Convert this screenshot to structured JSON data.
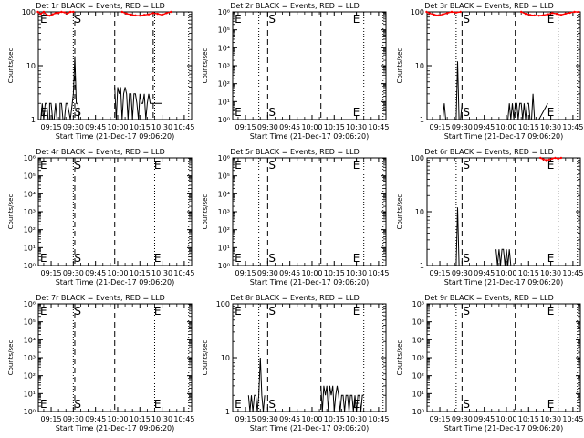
{
  "figure": {
    "xlabel": "Start Time (21-Dec-17 09:06:20)",
    "ylabel": "Counts/sec",
    "x_tick_labels": [
      "09:15",
      "09:30",
      "09:45",
      "10:00",
      "10:15",
      "10:30",
      "10:45"
    ],
    "colors": {
      "events": "#000000",
      "lld": "#ff0000",
      "axes": "#000000",
      "background": "#ffffff"
    }
  },
  "chart_data": [
    {
      "type": "line",
      "title": "Det 1r  BLACK = Events, RED = LLD",
      "xlabel": "Start Time (21-Dec-17 09:06:20)",
      "ylabel": "Counts/sec",
      "yscale": "log",
      "ylim": [
        1,
        100
      ],
      "xlim": [
        "09:06:20",
        "10:50:00"
      ],
      "y_tick_labels": [
        "1",
        "10",
        "100"
      ],
      "markers": [
        {
          "label": "E",
          "time": "09:06"
        },
        {
          "label": "S",
          "time": "09:30"
        }
      ],
      "vlines": {
        "dotted": [
          "09:30",
          "10:25",
          "10:48"
        ],
        "dashed": [
          "09:31",
          "09:58",
          "10:24"
        ]
      },
      "series": [
        {
          "color": "#000000",
          "x": [
            "09:07",
            "09:08",
            "09:09",
            "09:10",
            "09:10",
            "09:11",
            "09:12",
            "09:13",
            "09:14",
            "09:14",
            "09:15",
            "09:16",
            "09:17",
            "09:18",
            "09:18",
            "09:19",
            "09:20",
            "09:21",
            "09:21",
            "09:22",
            "09:23",
            "09:24",
            "09:25",
            "09:26",
            "09:28",
            "09:30",
            "09:31",
            "09:32",
            "09:33",
            "09:34"
          ],
          "values": [
            1,
            1,
            2,
            1,
            1,
            2,
            2,
            1,
            1,
            2,
            2,
            1,
            1,
            2,
            2,
            1,
            1,
            1,
            2,
            2,
            1,
            1,
            2,
            2,
            1,
            3,
            15,
            2,
            2,
            1
          ]
        },
        {
          "color": "#000000",
          "x": [
            "09:58",
            "09:59",
            "10:00",
            "10:01",
            "10:02",
            "10:03",
            "10:04",
            "10:05",
            "10:06",
            "10:07",
            "10:08",
            "10:09",
            "10:10",
            "10:11",
            "10:12",
            "10:13",
            "10:14",
            "10:15",
            "10:16",
            "10:17",
            "10:18",
            "10:19",
            "10:20",
            "10:21",
            "10:22",
            "10:23",
            "10:24",
            "10:25",
            "10:26",
            "10:27",
            "10:28",
            "10:29",
            "10:30"
          ],
          "values": [
            4,
            1,
            4,
            3,
            4,
            1,
            3,
            4,
            3,
            1,
            3,
            3,
            1,
            3,
            3,
            2,
            1,
            3,
            2,
            2,
            3,
            1,
            2,
            3,
            2,
            2,
            2,
            2,
            2,
            2,
            2,
            2,
            2
          ]
        },
        {
          "color": "#ff0000",
          "x": [
            "09:06",
            "09:08",
            "09:10",
            "09:12",
            "09:14",
            "09:16",
            "09:18",
            "09:20",
            "09:22",
            "09:24",
            "09:26",
            "09:28",
            "09:30"
          ],
          "values": [
            100,
            92,
            100,
            88,
            85,
            90,
            95,
            96,
            100,
            98,
            93,
            100,
            100
          ]
        },
        {
          "color": "#ff0000",
          "x": [
            "10:03",
            "10:06",
            "10:09",
            "10:12",
            "10:15",
            "10:18",
            "10:21",
            "10:24",
            "10:27",
            "10:30",
            "10:33",
            "10:36"
          ],
          "values": [
            100,
            93,
            89,
            86,
            85,
            88,
            90,
            95,
            92,
            88,
            95,
            100
          ]
        }
      ]
    },
    {
      "type": "line",
      "title": "Det 2r  BLACK = Events, RED = LLD",
      "xlabel": "Start Time (21-Dec-17 09:06:20)",
      "ylabel": "Counts/sec",
      "yscale": "log",
      "ylim": [
        1,
        1000000
      ],
      "xlim": [
        "09:06:20",
        "10:50:00"
      ],
      "y_tick_labels": [
        "10⁰",
        "10¹",
        "10²",
        "10³",
        "10⁴",
        "10⁵",
        "10⁶"
      ],
      "markers": [
        {
          "label": "E",
          "time": "09:07"
        },
        {
          "label": "S",
          "time": "09:30"
        },
        {
          "label": "E",
          "time": "10:27"
        }
      ],
      "vlines": {
        "dotted": [
          "09:24",
          "10:35",
          "10:48"
        ],
        "dashed": [
          "09:30",
          "10:06"
        ]
      },
      "series": []
    },
    {
      "type": "line",
      "title": "Det 3r  BLACK = Events, RED = LLD",
      "xlabel": "Start Time (21-Dec-17 09:06:20)",
      "ylabel": "Counts/sec",
      "yscale": "log",
      "ylim": [
        1,
        100
      ],
      "xlim": [
        "09:06:20",
        "10:50:00"
      ],
      "y_tick_labels": [
        "1",
        "10",
        "100"
      ],
      "markers": [
        {
          "label": "S",
          "time": "09:30"
        },
        {
          "label": "E",
          "time": "10:27"
        }
      ],
      "vlines": {
        "dotted": [
          "09:26",
          "10:35",
          "10:48"
        ],
        "dashed": [
          "09:30",
          "10:06"
        ]
      },
      "series": [
        {
          "color": "#000000",
          "x": [
            "09:17",
            "09:18",
            "09:19",
            "09:26",
            "09:27",
            "09:28",
            "09:29",
            "09:30"
          ],
          "values": [
            1,
            2,
            1,
            1,
            12,
            1,
            1,
            2
          ]
        },
        {
          "color": "#000000",
          "x": [
            "10:01",
            "10:02",
            "10:03",
            "10:04",
            "10:05",
            "10:06",
            "10:07",
            "10:08",
            "10:09",
            "10:10",
            "10:11",
            "10:12",
            "10:13",
            "10:14",
            "10:15",
            "10:16",
            "10:17",
            "10:18",
            "10:19",
            "10:20",
            "10:22",
            "10:28"
          ],
          "values": [
            1,
            2,
            1,
            2,
            1,
            2,
            2,
            1,
            2,
            2,
            1,
            2,
            1,
            2,
            2,
            1,
            1,
            3,
            1,
            1,
            1,
            2
          ]
        },
        {
          "color": "#ff0000",
          "x": [
            "09:06",
            "09:08",
            "09:11",
            "09:14",
            "09:17",
            "09:20",
            "09:23",
            "09:26",
            "09:29"
          ],
          "values": [
            100,
            94,
            89,
            86,
            90,
            95,
            100,
            97,
            100
          ]
        },
        {
          "color": "#ff0000",
          "x": [
            "10:10",
            "10:13",
            "10:16",
            "10:19",
            "10:22",
            "10:25",
            "10:28",
            "10:31",
            "10:34",
            "10:37",
            "10:40",
            "10:43",
            "10:46",
            "10:49"
          ],
          "values": [
            100,
            92,
            88,
            86,
            85,
            87,
            90,
            95,
            92,
            88,
            93,
            96,
            100,
            100
          ]
        }
      ]
    },
    {
      "type": "line",
      "title": "Det 4r  BLACK = Events, RED = LLD",
      "xlabel": "Start Time (21-Dec-17 09:06:20)",
      "ylabel": "Counts/sec",
      "yscale": "log",
      "ylim": [
        1,
        1000000
      ],
      "xlim": [
        "09:06:20",
        "10:50:00"
      ],
      "y_tick_labels": [
        "10⁰",
        "10¹",
        "10²",
        "10³",
        "10⁴",
        "10⁵",
        "10⁶"
      ],
      "markers": [
        {
          "label": "E",
          "time": "09:06"
        },
        {
          "label": "S",
          "time": "09:30"
        },
        {
          "label": "E",
          "time": "10:24"
        }
      ],
      "vlines": {
        "dotted": [
          "09:30",
          "10:25",
          "10:48"
        ],
        "dashed": [
          "09:31",
          "09:58"
        ]
      },
      "series": []
    },
    {
      "type": "line",
      "title": "Det 5r  BLACK = Events, RED = LLD",
      "xlabel": "Start Time (21-Dec-17 09:06:20)",
      "ylabel": "Counts/sec",
      "yscale": "log",
      "ylim": [
        1,
        1000000
      ],
      "xlim": [
        "09:06:20",
        "10:50:00"
      ],
      "y_tick_labels": [
        "10⁰",
        "10¹",
        "10²",
        "10³",
        "10⁴",
        "10⁵",
        "10⁶"
      ],
      "markers": [
        {
          "label": "E",
          "time": "09:07"
        },
        {
          "label": "S",
          "time": "09:30"
        },
        {
          "label": "E",
          "time": "10:27"
        }
      ],
      "vlines": {
        "dotted": [
          "09:24",
          "10:35",
          "10:48"
        ],
        "dashed": [
          "09:30",
          "10:06"
        ]
      },
      "series": []
    },
    {
      "type": "line",
      "title": "Det 6r  BLACK = Events, RED = LLD",
      "xlabel": "Start Time (21-Dec-17 09:06:20)",
      "ylabel": "Counts/sec",
      "yscale": "log",
      "ylim": [
        1,
        100
      ],
      "xlim": [
        "09:06:20",
        "10:50:00"
      ],
      "y_tick_labels": [
        "1",
        "10",
        "100"
      ],
      "markers": [
        {
          "label": "S",
          "time": "09:30"
        },
        {
          "label": "E",
          "time": "10:27"
        }
      ],
      "vlines": {
        "dotted": [
          "09:26",
          "10:35",
          "10:48"
        ],
        "dashed": [
          "09:30",
          "10:06"
        ]
      },
      "series": [
        {
          "color": "#000000",
          "x": [
            "09:26",
            "09:27",
            "09:28",
            "09:29"
          ],
          "values": [
            1,
            12,
            1,
            1
          ]
        },
        {
          "color": "#000000",
          "x": [
            "09:53",
            "09:54",
            "09:55",
            "09:56",
            "09:57",
            "09:58",
            "09:59",
            "10:00",
            "10:01",
            "10:02",
            "10:03"
          ],
          "values": [
            2,
            1,
            2,
            1,
            2,
            2,
            1,
            2,
            1,
            2,
            1
          ]
        },
        {
          "color": "#ff0000",
          "x": [
            "10:23",
            "10:25",
            "10:27",
            "10:29",
            "10:31",
            "10:33",
            "10:35",
            "10:37"
          ],
          "values": [
            100,
            94,
            91,
            93,
            97,
            100,
            96,
            100
          ]
        }
      ]
    },
    {
      "type": "line",
      "title": "Det 7r  BLACK = Events, RED = LLD",
      "xlabel": "Start Time (21-Dec-17 09:06:20)",
      "ylabel": "Counts/sec",
      "yscale": "log",
      "ylim": [
        1,
        1000000
      ],
      "xlim": [
        "09:06:20",
        "10:50:00"
      ],
      "y_tick_labels": [
        "10⁰",
        "10¹",
        "10²",
        "10³",
        "10⁴",
        "10⁵",
        "10⁶"
      ],
      "markers": [
        {
          "label": "E",
          "time": "09:06"
        },
        {
          "label": "S",
          "time": "09:30"
        },
        {
          "label": "E",
          "time": "10:24"
        }
      ],
      "vlines": {
        "dotted": [
          "09:30",
          "10:25",
          "10:48"
        ],
        "dashed": [
          "09:31",
          "09:58"
        ]
      },
      "series": []
    },
    {
      "type": "line",
      "title": "Det 8r  BLACK = Events, RED = LLD",
      "xlabel": "Start Time (21-Dec-17 09:06:20)",
      "ylabel": "Counts/sec",
      "yscale": "log",
      "ylim": [
        1,
        100
      ],
      "xlim": [
        "09:06:20",
        "10:50:00"
      ],
      "y_tick_labels": [
        "1",
        "10",
        "100"
      ],
      "markers": [
        {
          "label": "E",
          "time": "09:07"
        },
        {
          "label": "S",
          "time": "09:30"
        },
        {
          "label": "E",
          "time": "10:27"
        }
      ],
      "vlines": {
        "dotted": [
          "09:24",
          "10:35",
          "10:48"
        ],
        "dashed": [
          "09:30",
          "10:06"
        ]
      },
      "series": [
        {
          "color": "#000000",
          "x": [
            "09:17",
            "09:18",
            "09:19",
            "09:20",
            "09:21",
            "09:22",
            "09:23",
            "09:24",
            "09:25",
            "09:26",
            "09:27",
            "09:28"
          ],
          "values": [
            2,
            1,
            2,
            1,
            2,
            2,
            1,
            2,
            10,
            2,
            1,
            2
          ]
        },
        {
          "color": "#000000",
          "x": [
            "10:06",
            "10:07",
            "10:08",
            "10:09",
            "10:10",
            "10:11",
            "10:12",
            "10:13",
            "10:14",
            "10:15",
            "10:16",
            "10:17",
            "10:18",
            "10:19",
            "10:20",
            "10:21",
            "10:22",
            "10:23",
            "10:24",
            "10:25",
            "10:26",
            "10:27",
            "10:28",
            "10:29",
            "10:30",
            "10:31",
            "10:32",
            "10:33",
            "10:34",
            "10:35"
          ],
          "values": [
            3,
            1,
            3,
            2,
            3,
            1,
            3,
            2,
            3,
            1,
            2,
            3,
            2,
            1,
            2,
            2,
            1,
            2,
            2,
            1,
            2,
            2,
            1,
            2,
            1,
            2,
            2,
            1,
            2,
            2
          ]
        }
      ]
    },
    {
      "type": "line",
      "title": "Det 9r  BLACK = Events, RED = LLD",
      "xlabel": "Start Time (21-Dec-17 09:06:20)",
      "ylabel": "Counts/sec",
      "yscale": "log",
      "ylim": [
        1,
        1000000
      ],
      "xlim": [
        "09:06:20",
        "10:50:00"
      ],
      "y_tick_labels": [
        "10⁰",
        "10¹",
        "10²",
        "10³",
        "10⁴",
        "10⁵",
        "10⁶"
      ],
      "markers": [
        {
          "label": "S",
          "time": "09:30"
        },
        {
          "label": "E",
          "time": "10:27"
        }
      ],
      "vlines": {
        "dotted": [
          "09:26",
          "10:35",
          "10:48"
        ],
        "dashed": [
          "09:30",
          "10:06"
        ]
      },
      "series": []
    }
  ]
}
